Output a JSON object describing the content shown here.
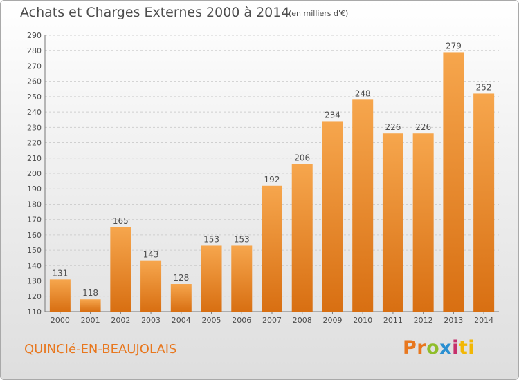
{
  "header": {
    "title": "Achats et Charges Externes 2000 à 2014",
    "subtitle": "(en milliers d'€)"
  },
  "footer": {
    "commune": "QUINCIé-EN-BEAUJOLAIS",
    "brand_parts": [
      "Pr",
      "o",
      "x",
      "i",
      "ti"
    ]
  },
  "colors": {
    "bar_light": "#f6a64d",
    "bar_dark": "#d86f12",
    "commune": "#e8771e",
    "text": "#4d4d4d",
    "grid": "#cfcfcf"
  },
  "chart_data": {
    "type": "bar",
    "title": "Achats et Charges Externes 2000 à 2014",
    "subtitle": "(en milliers d'€)",
    "xlabel": "",
    "ylabel": "",
    "categories": [
      "2000",
      "2001",
      "2002",
      "2003",
      "2004",
      "2005",
      "2006",
      "2007",
      "2008",
      "2009",
      "2010",
      "2011",
      "2012",
      "2013",
      "2014"
    ],
    "values": [
      131,
      118,
      165,
      143,
      128,
      153,
      153,
      192,
      206,
      234,
      248,
      226,
      226,
      279,
      252
    ],
    "ylim": [
      110,
      290
    ],
    "yticks": [
      110,
      120,
      130,
      140,
      150,
      160,
      170,
      180,
      190,
      200,
      210,
      220,
      230,
      240,
      250,
      260,
      270,
      280,
      290
    ],
    "grid": true,
    "data_labels": true
  }
}
